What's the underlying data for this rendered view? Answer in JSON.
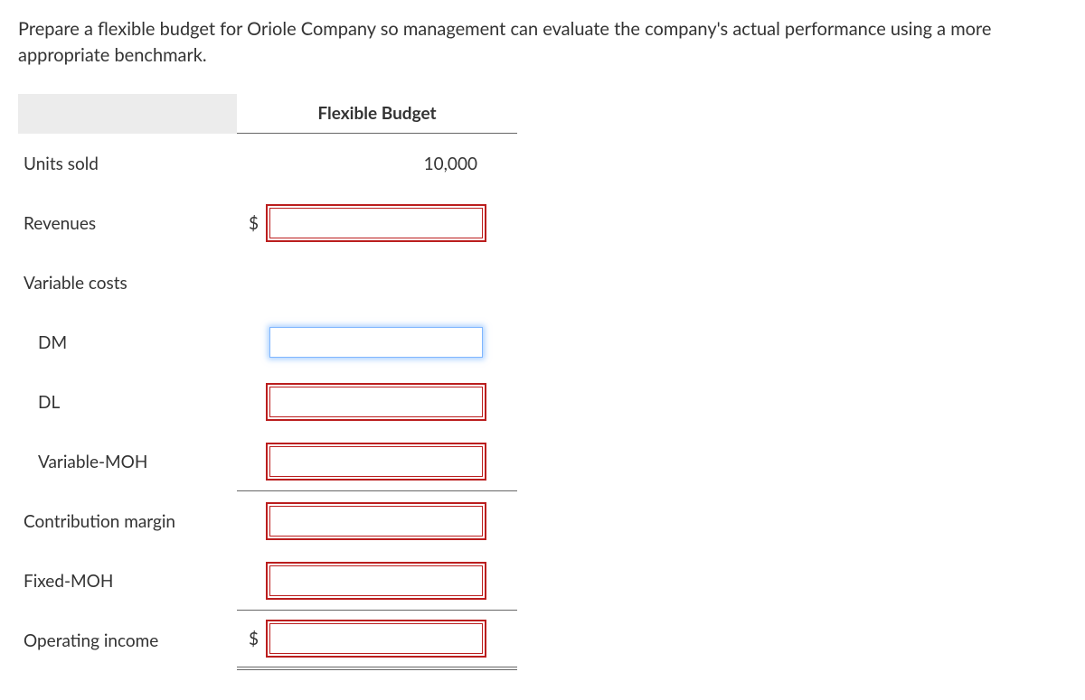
{
  "prompt_text": "Prepare a flexible budget for Oriole Company so management can evaluate the company's actual performance using a more appropriate benchmark.",
  "table": {
    "header": "Flexible Budget",
    "units_sold": {
      "label": "Units sold",
      "value": "10,000"
    },
    "revenues": {
      "label": "Revenues",
      "currency": "$",
      "value": ""
    },
    "variable_costs": {
      "label": "Variable costs"
    },
    "dm": {
      "label": "DM",
      "value": ""
    },
    "dl": {
      "label": "DL",
      "value": ""
    },
    "variable_moh": {
      "label": "Variable-MOH",
      "value": ""
    },
    "contribution_margin": {
      "label": "Contribution margin",
      "value": ""
    },
    "fixed_moh": {
      "label": "Fixed-MOH",
      "value": ""
    },
    "operating_income": {
      "label": "Operating income",
      "currency": "$",
      "value": ""
    }
  },
  "style": {
    "input_error_border": "#bb1e1e",
    "input_focus_border": "#7fb6ff",
    "header_bg": "#ececec",
    "text_color": "#333333",
    "rule_color": "#666666",
    "font_size_body": 19,
    "font_size_prompt": 20
  }
}
